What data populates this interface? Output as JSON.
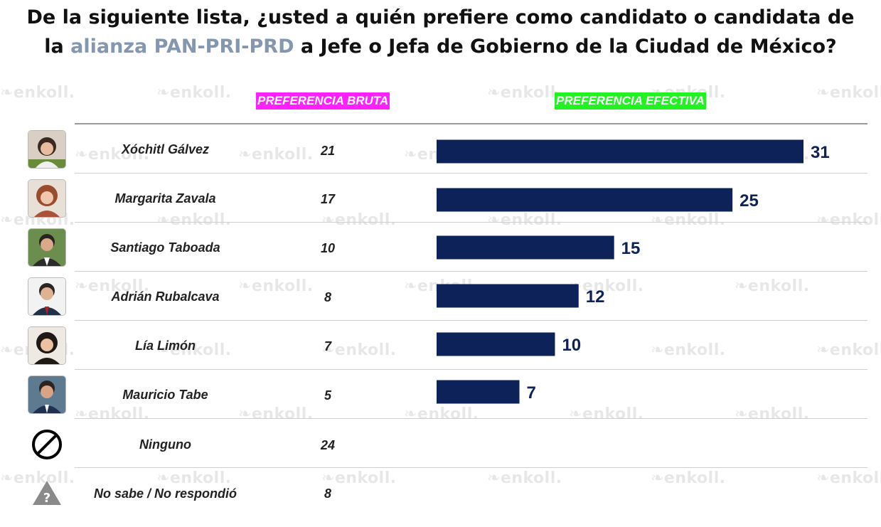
{
  "title": {
    "line1": "De la siguiente lista, ¿usted a quién prefiere como candidato o candidata de",
    "line2_pre": "la ",
    "line2_highlight": "alianza PAN-PRI-PRD",
    "line2_post": " a Jefe o Jefa de Gobierno de la Ciudad de México?"
  },
  "watermark": "enkoll.",
  "headers": {
    "bruta": "PREFERENCIA BRUTA",
    "efectiva": "PREFERENCIA EFECTIVA"
  },
  "colors": {
    "bar": "#0d2259",
    "bruta_header": "#ff20ff",
    "efectiva_header": "#22f122",
    "highlight": "#8497b0"
  },
  "rows": [
    {
      "name": "Xóchitl Gálvez",
      "bruta": "21",
      "icon": "candidate-photo"
    },
    {
      "name": "Margarita Zavala",
      "bruta": "17",
      "icon": "candidate-photo"
    },
    {
      "name": "Santiago Taboada",
      "bruta": "10",
      "icon": "candidate-photo"
    },
    {
      "name": "Adrián Rubalcava",
      "bruta": "8",
      "icon": "candidate-photo"
    },
    {
      "name": "Lía Limón",
      "bruta": "7",
      "icon": "candidate-photo"
    },
    {
      "name": "Mauricio Tabe",
      "bruta": "5",
      "icon": "candidate-photo"
    },
    {
      "name": "Ninguno",
      "bruta": "24",
      "icon": "prohibited-icon"
    },
    {
      "name": "No sabe / No respondió",
      "bruta": "8",
      "icon": "question-warning-icon"
    }
  ],
  "chart_data": {
    "type": "bar",
    "orientation": "horizontal",
    "categories": [
      "Xóchitl Gálvez",
      "Margarita Zavala",
      "Santiago Taboada",
      "Adrián Rubalcava",
      "Lía Limón",
      "Mauricio Tabe"
    ],
    "series": [
      {
        "name": "PREFERENCIA EFECTIVA",
        "values": [
          31,
          25,
          15,
          12,
          10,
          7
        ]
      }
    ],
    "data_labels": [
      "31",
      "25",
      "15",
      "12",
      "10",
      "7"
    ],
    "xlim": [
      0,
      31
    ],
    "grid": false,
    "legend": "none"
  }
}
